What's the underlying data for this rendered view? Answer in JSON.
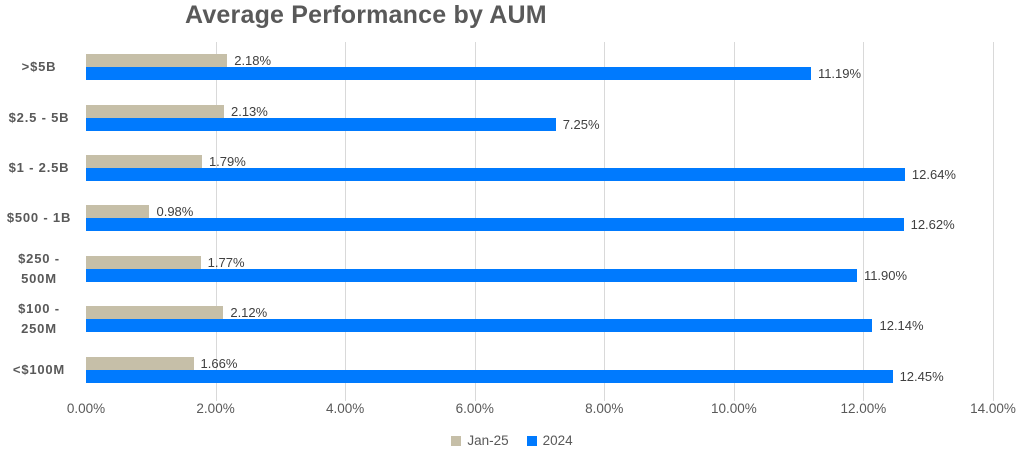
{
  "chart_data": {
    "type": "bar",
    "orientation": "horizontal",
    "title": "Average Performance by AUM",
    "categories": [
      ">$5B",
      "$2.5 - 5B",
      "$1 - 2.5B",
      "$500 - 1B",
      "$250 -\n500M",
      "$100 -\n250M",
      "<$100M"
    ],
    "series": [
      {
        "name": "Jan-25",
        "color": "#c6bfa8",
        "values": [
          2.18,
          2.13,
          1.79,
          0.98,
          1.77,
          2.12,
          1.66
        ],
        "labels": [
          "2.18%",
          "2.13%",
          "1.79%",
          "0.98%",
          "1.77%",
          "2.12%",
          "1.66%"
        ]
      },
      {
        "name": "2024",
        "color": "#007afe",
        "values": [
          11.19,
          7.25,
          12.64,
          12.62,
          11.9,
          12.14,
          12.45
        ],
        "labels": [
          "11.19%",
          "7.25%",
          "12.64%",
          "12.62%",
          "11.90%",
          "12.14%",
          "12.45%"
        ]
      }
    ],
    "xlim": [
      0,
      14
    ],
    "x_tick_values": [
      0,
      2,
      4,
      6,
      8,
      10,
      12,
      14
    ],
    "x_tick_labels": [
      "0.00%",
      "2.00%",
      "4.00%",
      "6.00%",
      "8.00%",
      "10.00%",
      "12.00%",
      "14.00%"
    ],
    "grid": "vertical",
    "legend_position": "bottom",
    "colors": {
      "title_text": "#595959",
      "axis_text": "#595959",
      "value_label_text": "#404040",
      "gridline": "#d9d9d9",
      "background": "#ffffff"
    }
  }
}
